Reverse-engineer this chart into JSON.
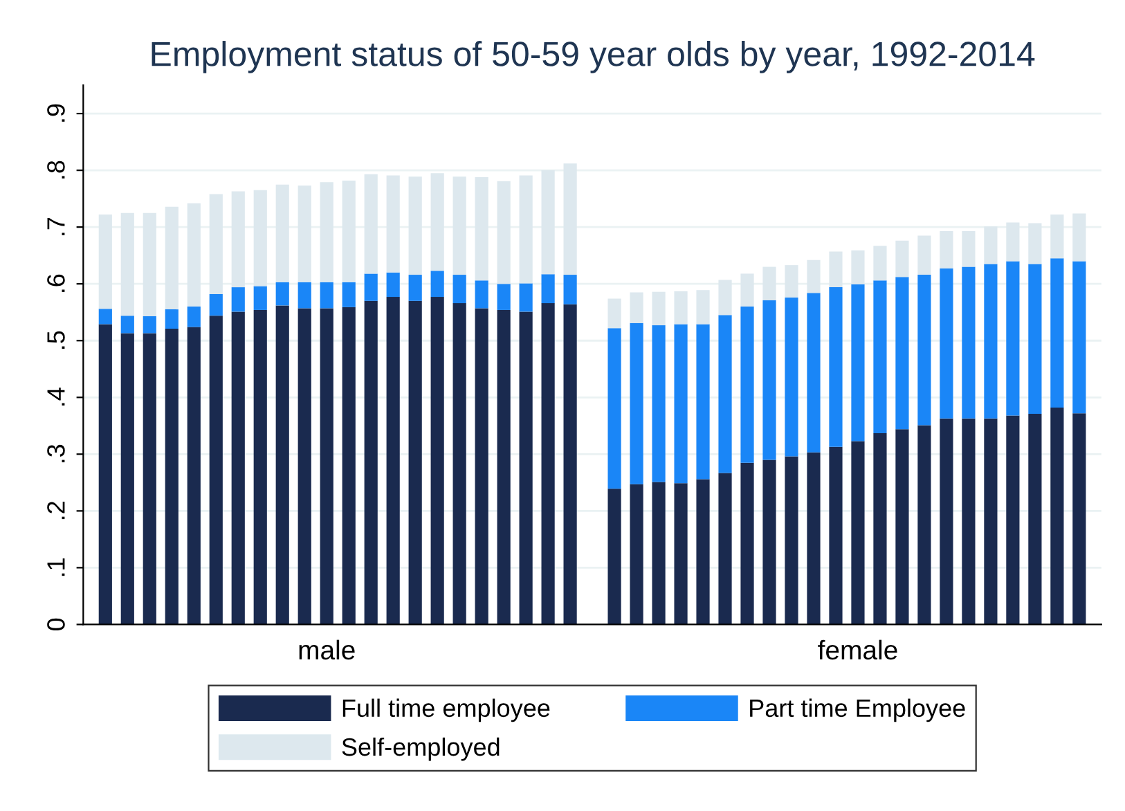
{
  "chart_data": {
    "type": "bar",
    "stacked": true,
    "title": "Employment status of 50-59 year olds by year, 1992-2014",
    "categories": [
      null,
      null,
      null,
      null,
      null,
      null,
      null,
      null,
      null,
      null,
      "male",
      null,
      null,
      null,
      null,
      null,
      null,
      null,
      null,
      null,
      null,
      null,
      null,
      null,
      null,
      null,
      null,
      null,
      null,
      null,
      null,
      null,
      null,
      null,
      "female",
      null,
      null,
      null,
      null,
      null,
      null,
      null,
      null,
      null,
      null
    ],
    "series": [
      {
        "name": "Full time employee",
        "color": "#1a2a4f",
        "values": [
          0.529,
          0.513,
          0.513,
          0.521,
          0.524,
          0.544,
          0.551,
          0.554,
          0.562,
          0.557,
          0.557,
          0.559,
          0.57,
          0.577,
          0.57,
          0.577,
          0.566,
          0.557,
          0.554,
          0.551,
          0.566,
          0.564,
          null,
          0.239,
          0.247,
          0.251,
          0.249,
          0.256,
          0.267,
          0.285,
          0.29,
          0.296,
          0.303,
          0.313,
          0.323,
          0.337,
          0.344,
          0.351,
          0.363,
          0.363,
          0.363,
          0.368,
          0.371,
          0.382,
          0.372
        ]
      },
      {
        "name": "Part time Employee",
        "color": "#1a86f7",
        "values": [
          0.027,
          0.031,
          0.03,
          0.034,
          0.036,
          0.038,
          0.043,
          0.042,
          0.041,
          0.046,
          0.046,
          0.044,
          0.048,
          0.043,
          0.046,
          0.046,
          0.05,
          0.049,
          0.046,
          0.05,
          0.051,
          0.052,
          null,
          0.283,
          0.284,
          0.276,
          0.28,
          0.273,
          0.278,
          0.275,
          0.281,
          0.28,
          0.281,
          0.281,
          0.276,
          0.269,
          0.268,
          0.265,
          0.264,
          0.267,
          0.272,
          0.272,
          0.264,
          0.263,
          0.268
        ]
      },
      {
        "name": "Self-employed",
        "color": "#dde8ee",
        "values": [
          0.166,
          0.181,
          0.182,
          0.181,
          0.182,
          0.176,
          0.169,
          0.169,
          0.172,
          0.17,
          0.176,
          0.179,
          0.175,
          0.171,
          0.173,
          0.172,
          0.173,
          0.182,
          0.181,
          0.19,
          0.183,
          0.196,
          null,
          0.052,
          0.054,
          0.059,
          0.058,
          0.06,
          0.062,
          0.058,
          0.059,
          0.057,
          0.058,
          0.063,
          0.06,
          0.061,
          0.064,
          0.069,
          0.066,
          0.063,
          0.066,
          0.068,
          0.072,
          0.077,
          0.084
        ]
      }
    ],
    "ylim": [
      0,
      0.95
    ],
    "yticks": [
      0,
      {
        "value": 0.1,
        "label": ".1"
      },
      {
        "value": 0.2,
        "label": ".2"
      },
      {
        "value": 0.3,
        "label": ".3"
      },
      {
        "value": 0.4,
        "label": ".4"
      },
      {
        "value": 0.5,
        "label": ".5"
      },
      {
        "value": 0.6,
        "label": ".6"
      },
      {
        "value": 0.7,
        "label": ".7"
      },
      {
        "value": 0.8,
        "label": ".8"
      },
      {
        "value": 0.9,
        "label": ".9"
      }
    ],
    "grid": "y",
    "legend": "bottom"
  }
}
